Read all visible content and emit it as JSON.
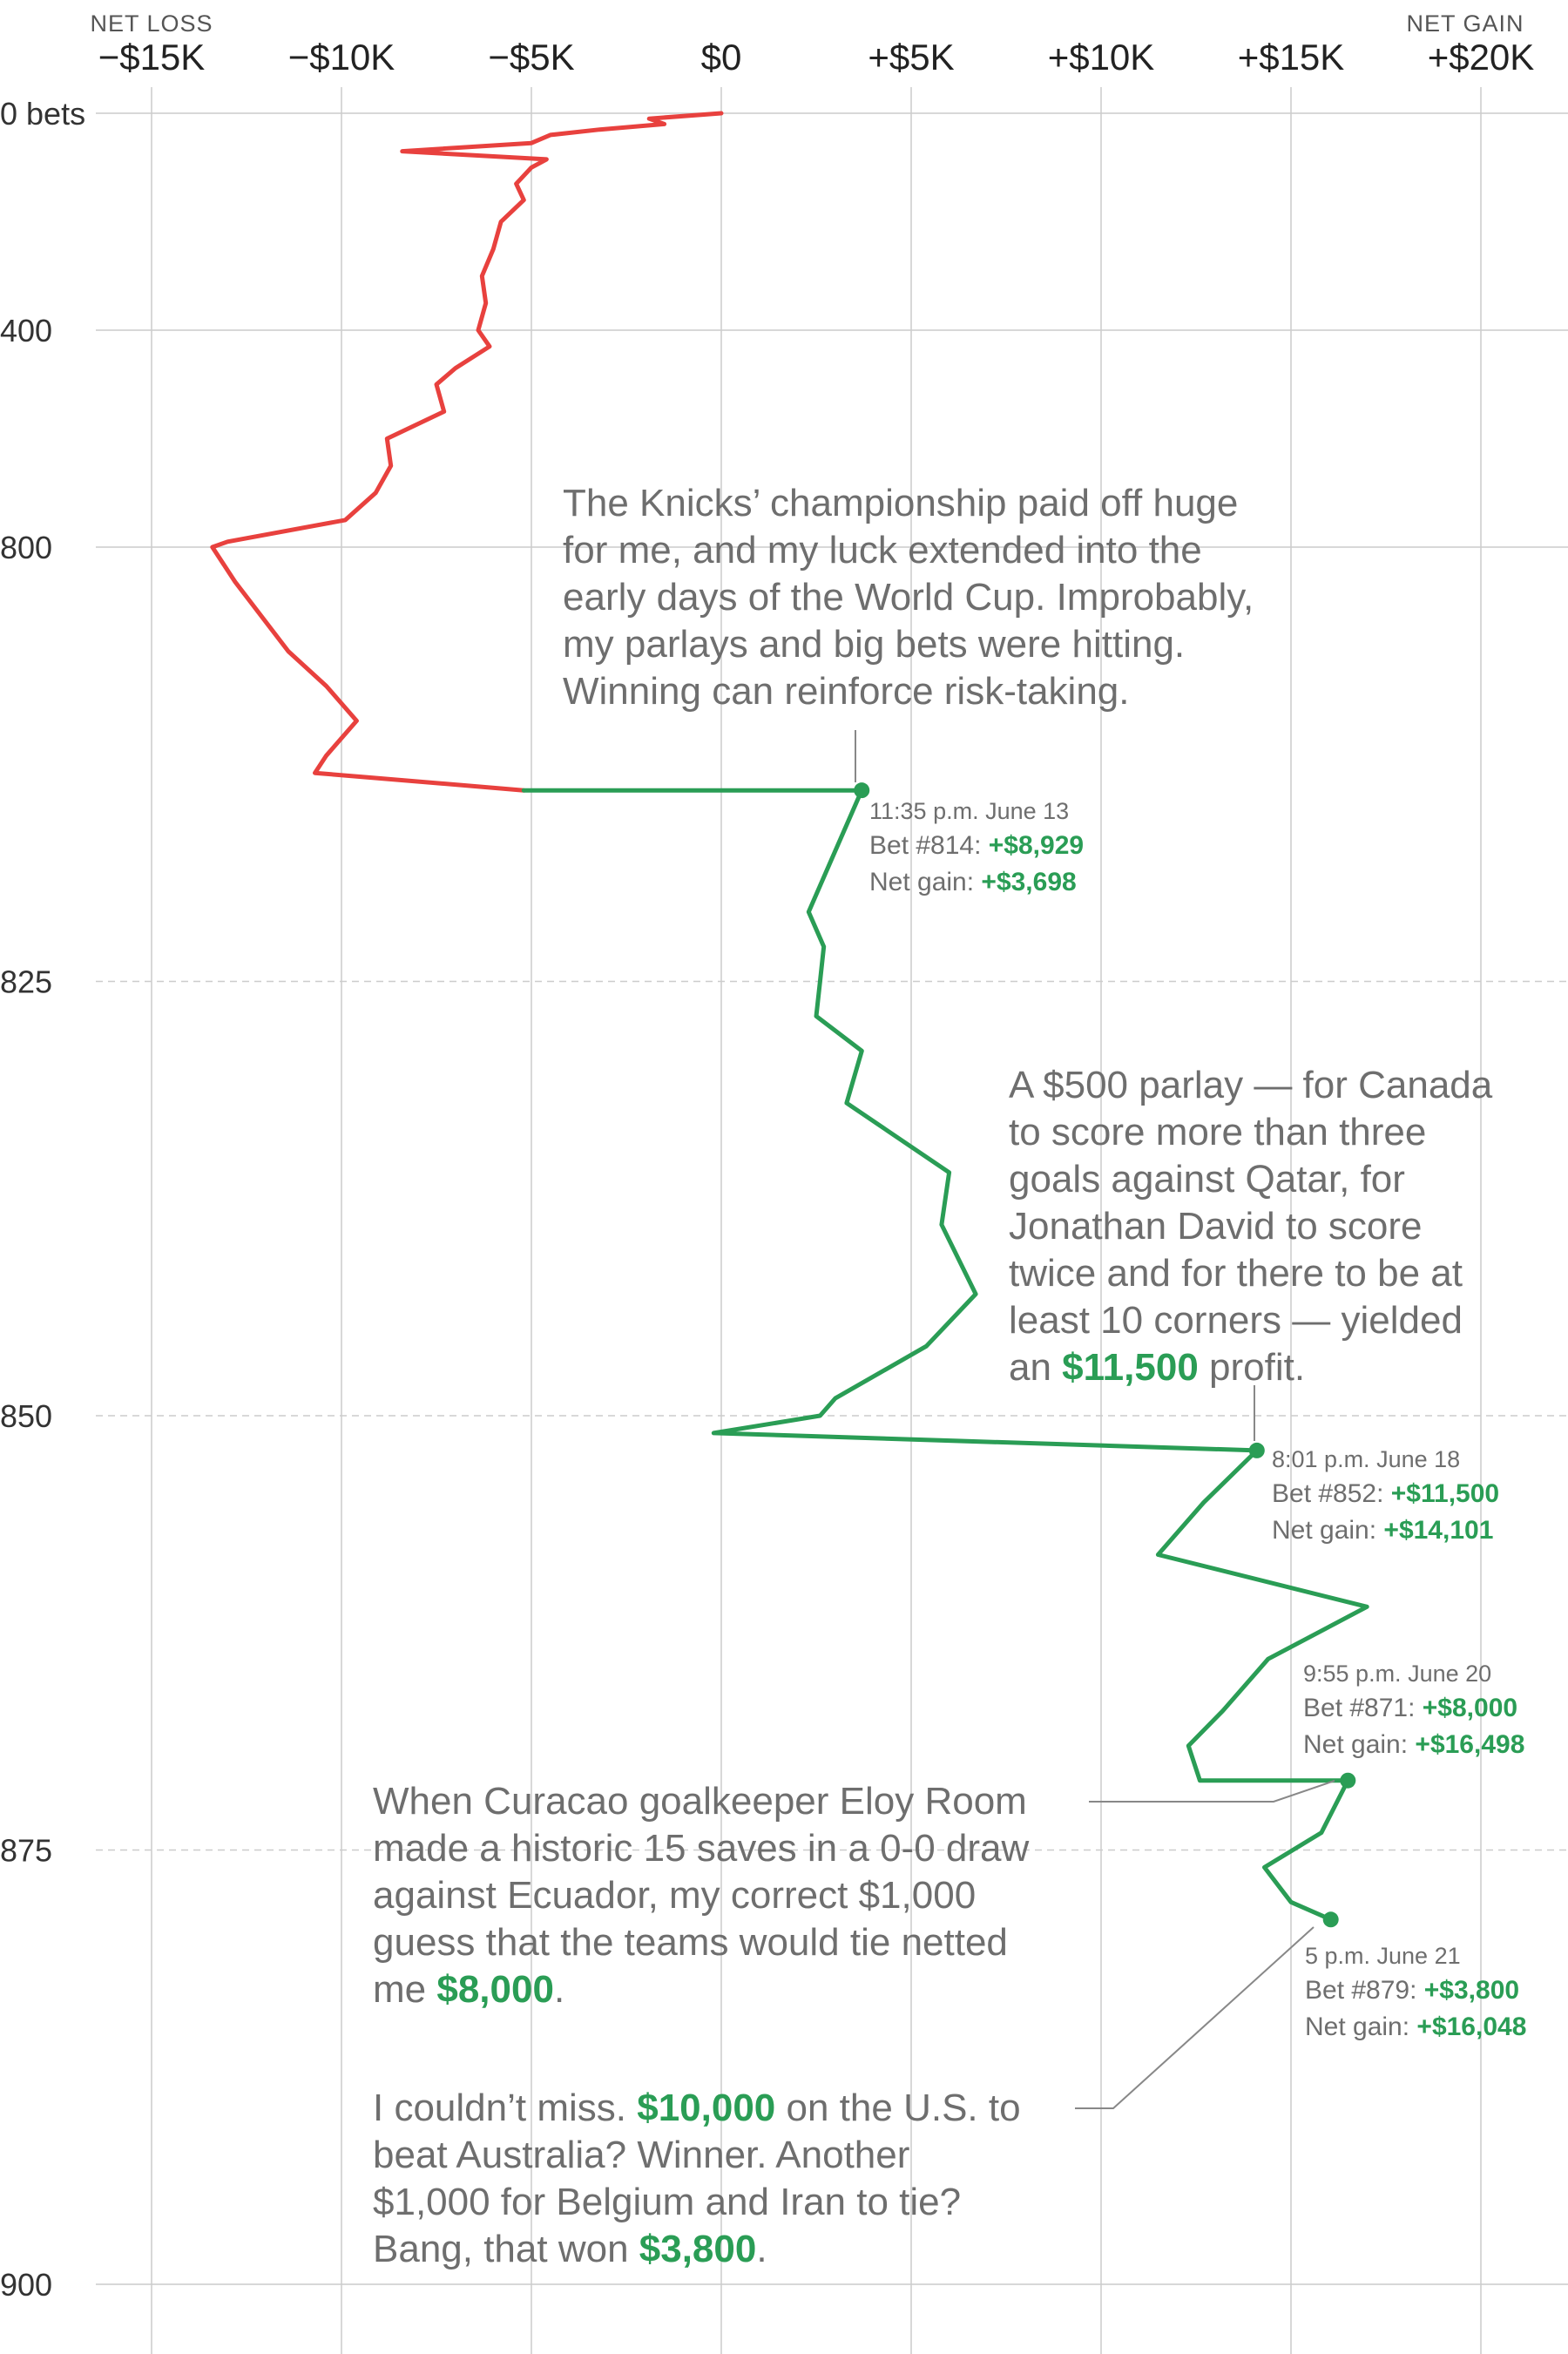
{
  "chart_data": {
    "type": "line",
    "x_axis": {
      "left_caption": "NET LOSS",
      "right_caption": "NET GAIN",
      "ticks": [
        {
          "value": -15000,
          "label": "−$15K"
        },
        {
          "value": -10000,
          "label": "−$10K"
        },
        {
          "value": -5000,
          "label": "−$5K"
        },
        {
          "value": 0,
          "label": "$0"
        },
        {
          "value": 5000,
          "label": "+$5K"
        },
        {
          "value": 10000,
          "label": "+$10K"
        },
        {
          "value": 15000,
          "label": "+$15K"
        },
        {
          "value": 20000,
          "label": "+$20K"
        }
      ],
      "range": [
        -15000,
        20000
      ]
    },
    "y_axis": {
      "label": "bets",
      "segments": [
        {
          "from": 0,
          "to": 800,
          "ticks": [
            {
              "value": 0,
              "label": "0 bets"
            },
            {
              "value": 400,
              "label": "400"
            },
            {
              "value": 800,
              "label": "800"
            }
          ]
        },
        {
          "from": 800,
          "to": 900,
          "ticks": [
            {
              "value": 825,
              "label": "825"
            },
            {
              "value": 850,
              "label": "850"
            },
            {
              "value": 875,
              "label": "875"
            },
            {
              "value": 900,
              "label": "900"
            }
          ]
        }
      ]
    },
    "series": [
      {
        "color": "#e8413e",
        "points": [
          [
            0,
            0
          ],
          [
            10,
            -1900
          ],
          [
            20,
            -1500
          ],
          [
            30,
            -3200
          ],
          [
            40,
            -4500
          ],
          [
            55,
            -5000
          ],
          [
            70,
            -8400
          ],
          [
            85,
            -4600
          ],
          [
            100,
            -5000
          ],
          [
            130,
            -5400
          ],
          [
            160,
            -5200
          ],
          [
            200,
            -5800
          ],
          [
            250,
            -6000
          ],
          [
            300,
            -6300
          ],
          [
            350,
            -6200
          ],
          [
            400,
            -6400
          ],
          [
            430,
            -6100
          ],
          [
            470,
            -7000
          ],
          [
            500,
            -7500
          ],
          [
            550,
            -7300
          ],
          [
            600,
            -8800
          ],
          [
            650,
            -8700
          ],
          [
            700,
            -9100
          ],
          [
            750,
            -9900
          ],
          [
            790,
            -13000
          ],
          [
            800,
            -13400
          ],
          [
            802,
            -12800
          ],
          [
            806,
            -11400
          ],
          [
            808,
            -10400
          ],
          [
            810,
            -9600
          ],
          [
            812,
            -10400
          ],
          [
            813,
            -10700
          ],
          [
            814,
            -5200
          ]
        ]
      },
      {
        "color": "#2a9d55",
        "points": [
          [
            814,
            -5200
          ],
          [
            814,
            3698
          ],
          [
            818,
            2900
          ],
          [
            821,
            2300
          ],
          [
            823,
            2700
          ],
          [
            825,
            2600
          ],
          [
            827,
            2500
          ],
          [
            829,
            3700
          ],
          [
            832,
            3300
          ],
          [
            836,
            6000
          ],
          [
            839,
            5800
          ],
          [
            843,
            6700
          ],
          [
            846,
            5400
          ],
          [
            849,
            3000
          ],
          [
            850,
            2600
          ],
          [
            851,
            -200
          ],
          [
            852,
            14101
          ],
          [
            855,
            12700
          ],
          [
            858,
            11500
          ],
          [
            861,
            17000
          ],
          [
            864,
            14400
          ],
          [
            867,
            13200
          ],
          [
            869,
            12300
          ],
          [
            871,
            12600
          ],
          [
            871,
            16498
          ],
          [
            874,
            15800
          ],
          [
            876,
            14300
          ],
          [
            878,
            15000
          ],
          [
            879,
            16048
          ]
        ]
      }
    ],
    "annotations": [
      {
        "bet": 814,
        "value": 3698,
        "time": "11:35 p.m. June 13",
        "bet_label": "Bet #814:",
        "bet_value": "+$8,929",
        "net_label": "Net gain:",
        "net_value": "+$3,698",
        "note": [
          "The Knicks’ championship paid off huge",
          "for me, and my luck extended into the",
          "early days of the World Cup. Improbably,",
          "my parlays and big bets were hitting.",
          "Winning can reinforce risk-taking."
        ]
      },
      {
        "bet": 852,
        "value": 14101,
        "time": "8:01 p.m.  June 18",
        "bet_label": "Bet #852:",
        "bet_value": "+$11,500",
        "net_label": "Net gain:",
        "net_value": "+$14,101",
        "note_lines": [
          "A $500 parlay — for Canada",
          "to score more than three",
          "goals against Qatar, for",
          "Jonathan David to score",
          "twice and for there to be at",
          "least 10 corners — yielded"
        ],
        "note_last_pre": "an ",
        "note_last_green": "$11,500",
        "note_last_post": " profit."
      },
      {
        "bet": 871,
        "value": 16498,
        "time": "9:55 p.m.  June 20",
        "bet_label": "Bet #871:",
        "bet_value": "+$8,000",
        "net_label": "Net gain:",
        "net_value": "+$16,498",
        "note_lines": [
          "When Curacao goalkeeper Eloy Room",
          "made a historic 15 saves in a 0-0 draw",
          "against Ecuador, my correct $1,000",
          "guess that the teams would tie netted"
        ],
        "note_last_pre": "me ",
        "note_last_green": "$8,000",
        "note_last_post": "."
      },
      {
        "bet": 879,
        "value": 16048,
        "time": "5 p.m.  June 21",
        "bet_label": "Bet #879:",
        "bet_value": "+$3,800",
        "net_label": "Net gain:",
        "net_value": "+$16,048",
        "note_first_pre": "I couldn’t miss. ",
        "note_first_green": "$10,000",
        "note_first_post": " on the U.S. to",
        "note_lines": [
          "beat Australia? Winner. Another",
          "$1,000 for Belgium and Iran to tie?"
        ],
        "note_last_pre": "Bang, that won ",
        "note_last_green": "$3,800",
        "note_last_post": "."
      }
    ],
    "colors": {
      "loss": "#e8413e",
      "gain": "#2a9d55",
      "grid": "#cccccc",
      "text": "#6e6e6e"
    }
  }
}
